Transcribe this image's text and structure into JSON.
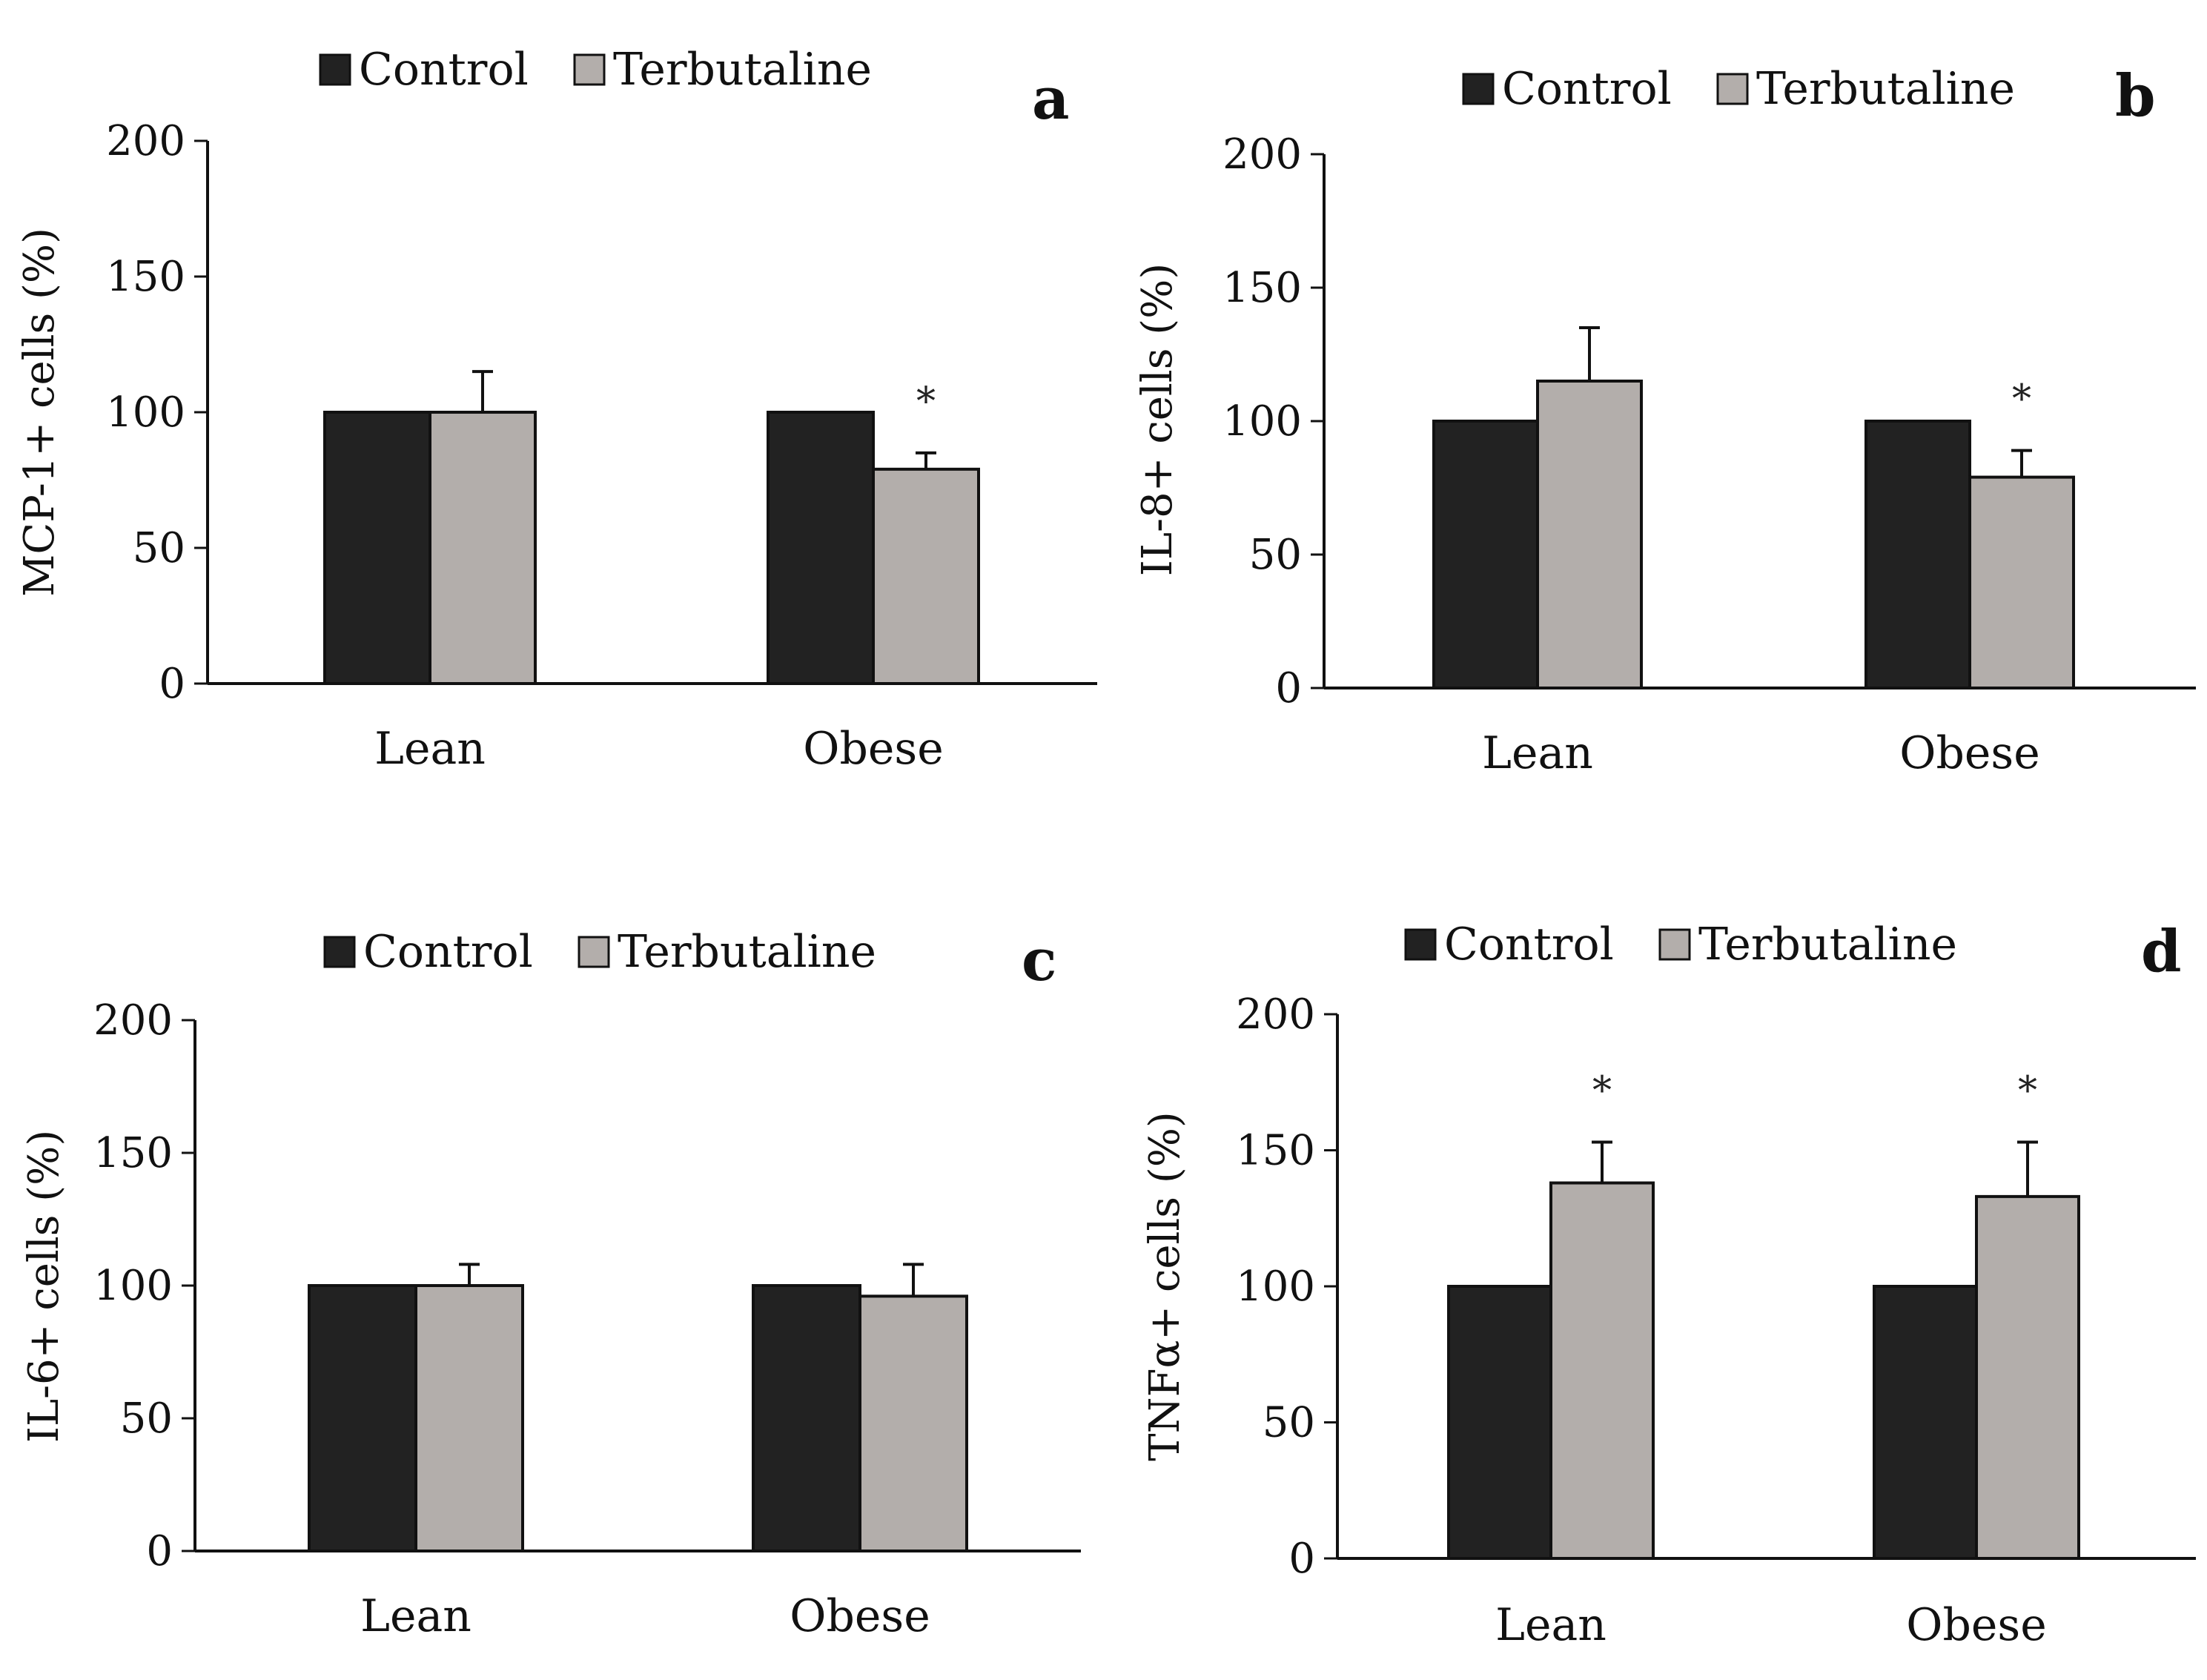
{
  "colors": {
    "control": "#222222",
    "terbutaline": "#b3aeab",
    "axis": "#111111"
  },
  "chart_data": [
    {
      "type": "bar",
      "panel": "a",
      "title": "",
      "xlabel": "",
      "ylabel": "MCP-1+ cells (%)",
      "ylim": [
        0,
        200
      ],
      "yticks": [
        "0",
        "50",
        "100",
        "150",
        "200"
      ],
      "categories": [
        "Lean",
        "Obese"
      ],
      "legend": [
        "Control",
        "Terbutaline"
      ],
      "series": [
        {
          "name": "Control",
          "values": [
            100,
            100
          ],
          "errors": [
            0,
            0
          ]
        },
        {
          "name": "Terbutaline",
          "values": [
            100,
            79
          ],
          "errors": [
            15,
            6
          ]
        }
      ],
      "annotations": [
        {
          "text": "*",
          "series": 1,
          "category": 1
        }
      ]
    },
    {
      "type": "bar",
      "panel": "b",
      "title": "",
      "xlabel": "",
      "ylabel": "IL-8+ cells (%)",
      "ylim": [
        0,
        200
      ],
      "yticks": [
        "0",
        "50",
        "100",
        "150",
        "200"
      ],
      "categories": [
        "Lean",
        "Obese"
      ],
      "legend": [
        "Control",
        "Terbutaline"
      ],
      "series": [
        {
          "name": "Control",
          "values": [
            100,
            100
          ],
          "errors": [
            0,
            0
          ]
        },
        {
          "name": "Terbutaline",
          "values": [
            115,
            79
          ],
          "errors": [
            20,
            10
          ]
        }
      ],
      "annotations": [
        {
          "text": "*",
          "series": 1,
          "category": 1
        }
      ]
    },
    {
      "type": "bar",
      "panel": "c",
      "title": "",
      "xlabel": "",
      "ylabel": "IL-6+ cells (%)",
      "ylim": [
        0,
        200
      ],
      "yticks": [
        "0",
        "50",
        "100",
        "150",
        "200"
      ],
      "categories": [
        "Lean",
        "Obese"
      ],
      "legend": [
        "Control",
        "Terbutaline"
      ],
      "series": [
        {
          "name": "Control",
          "values": [
            100,
            100
          ],
          "errors": [
            0,
            0
          ]
        },
        {
          "name": "Terbutaline",
          "values": [
            100,
            96
          ],
          "errors": [
            8,
            12
          ]
        }
      ],
      "annotations": []
    },
    {
      "type": "bar",
      "panel": "d",
      "title": "",
      "xlabel": "",
      "ylabel": "TNFα+ cells (%)",
      "ylim": [
        0,
        200
      ],
      "yticks": [
        "0",
        "50",
        "100",
        "150",
        "200"
      ],
      "categories": [
        "Lean",
        "Obese"
      ],
      "legend": [
        "Control",
        "Terbutaline"
      ],
      "series": [
        {
          "name": "Control",
          "values": [
            100,
            100
          ],
          "errors": [
            0,
            0
          ]
        },
        {
          "name": "Terbutaline",
          "values": [
            138,
            133
          ],
          "errors": [
            15,
            20
          ]
        }
      ],
      "annotations": [
        {
          "text": "*",
          "series": 1,
          "category": 0
        },
        {
          "text": "*",
          "series": 1,
          "category": 1
        }
      ]
    }
  ]
}
